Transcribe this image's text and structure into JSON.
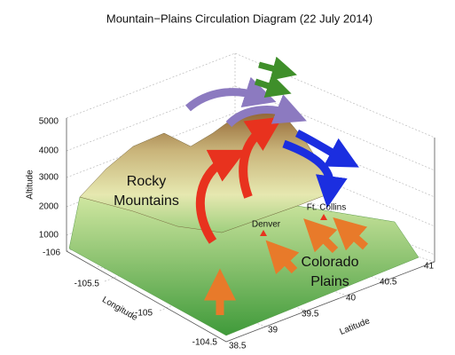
{
  "title": "Mountain−Plains Circulation Diagram (22 July 2014)",
  "axes": {
    "altitude": {
      "label": "Altitude",
      "ticks": [
        5000,
        4000,
        3000,
        2000,
        1000
      ]
    },
    "longitude": {
      "label": "Longitude",
      "ticks": [
        -106,
        -105.5,
        -105,
        -104.5
      ]
    },
    "latitude": {
      "label": "Latitude",
      "ticks": [
        38.5,
        39,
        39.5,
        40,
        40.5,
        41
      ]
    }
  },
  "labels": {
    "rocky_mountains": [
      "Rocky",
      "Mountains"
    ],
    "denver": "Denver",
    "ft_collins": "Ft. Collins",
    "colorado_plains": [
      "Colorado",
      "Plains"
    ]
  }
}
